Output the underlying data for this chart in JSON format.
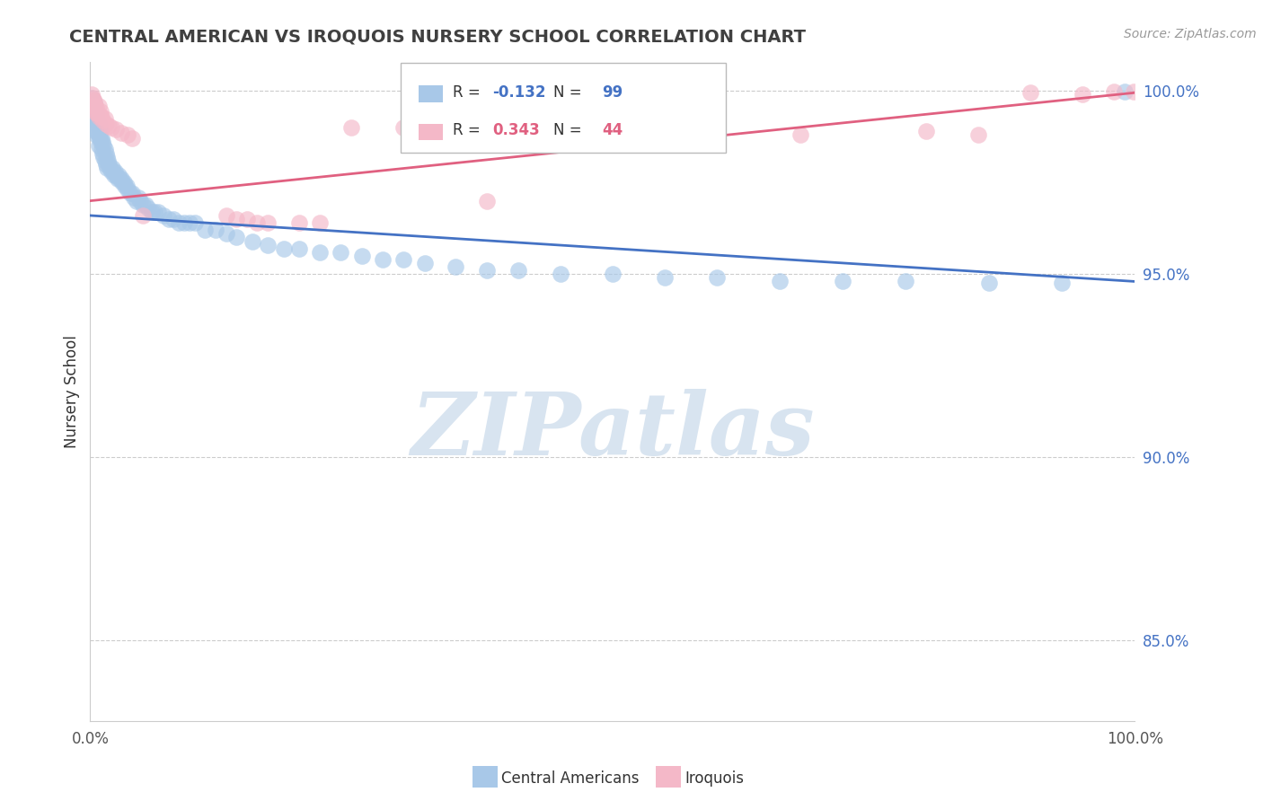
{
  "title": "CENTRAL AMERICAN VS IROQUOIS NURSERY SCHOOL CORRELATION CHART",
  "source_text": "Source: ZipAtlas.com",
  "ylabel": "Nursery School",
  "right_ytick_labels": [
    "85.0%",
    "90.0%",
    "95.0%",
    "100.0%"
  ],
  "right_ytick_values": [
    0.85,
    0.9,
    0.95,
    1.0
  ],
  "xmin": 0.0,
  "xmax": 1.0,
  "ymin": 0.828,
  "ymax": 1.008,
  "blue_R": -0.132,
  "blue_N": 99,
  "pink_R": 0.343,
  "pink_N": 44,
  "blue_color": "#a8c8e8",
  "pink_color": "#f4b8c8",
  "blue_line_color": "#4472c4",
  "pink_line_color": "#e06080",
  "grid_color": "#cccccc",
  "background_color": "#ffffff",
  "title_color": "#404040",
  "watermark_text": "ZIPatlas",
  "watermark_color": "#d8e4f0",
  "legend_label_blue": "Central Americans",
  "legend_label_pink": "Iroquois",
  "blue_line_y_start": 0.966,
  "blue_line_y_end": 0.948,
  "pink_line_y_start": 0.97,
  "pink_line_y_end": 0.9995,
  "blue_scatter_x": [
    0.001,
    0.002,
    0.002,
    0.003,
    0.003,
    0.003,
    0.004,
    0.004,
    0.005,
    0.005,
    0.005,
    0.006,
    0.006,
    0.006,
    0.007,
    0.007,
    0.008,
    0.008,
    0.008,
    0.009,
    0.009,
    0.01,
    0.01,
    0.011,
    0.011,
    0.012,
    0.012,
    0.013,
    0.013,
    0.014,
    0.014,
    0.015,
    0.015,
    0.016,
    0.016,
    0.017,
    0.018,
    0.019,
    0.02,
    0.021,
    0.022,
    0.023,
    0.024,
    0.025,
    0.026,
    0.027,
    0.028,
    0.03,
    0.031,
    0.032,
    0.033,
    0.035,
    0.036,
    0.038,
    0.04,
    0.042,
    0.044,
    0.046,
    0.048,
    0.05,
    0.053,
    0.056,
    0.059,
    0.062,
    0.065,
    0.07,
    0.075,
    0.08,
    0.085,
    0.09,
    0.095,
    0.1,
    0.11,
    0.12,
    0.13,
    0.14,
    0.155,
    0.17,
    0.185,
    0.2,
    0.22,
    0.24,
    0.26,
    0.28,
    0.3,
    0.32,
    0.35,
    0.38,
    0.41,
    0.45,
    0.5,
    0.55,
    0.6,
    0.66,
    0.72,
    0.78,
    0.86,
    0.93,
    0.99
  ],
  "blue_scatter_y": [
    0.998,
    0.996,
    0.994,
    0.997,
    0.995,
    0.992,
    0.9965,
    0.993,
    0.9945,
    0.992,
    0.989,
    0.9935,
    0.991,
    0.988,
    0.992,
    0.989,
    0.991,
    0.988,
    0.985,
    0.99,
    0.987,
    0.989,
    0.986,
    0.987,
    0.984,
    0.986,
    0.983,
    0.985,
    0.982,
    0.984,
    0.981,
    0.983,
    0.98,
    0.982,
    0.979,
    0.981,
    0.98,
    0.979,
    0.978,
    0.979,
    0.978,
    0.977,
    0.978,
    0.977,
    0.976,
    0.977,
    0.976,
    0.976,
    0.975,
    0.975,
    0.974,
    0.974,
    0.973,
    0.972,
    0.972,
    0.971,
    0.97,
    0.971,
    0.97,
    0.969,
    0.969,
    0.968,
    0.967,
    0.967,
    0.967,
    0.966,
    0.965,
    0.965,
    0.964,
    0.964,
    0.964,
    0.964,
    0.962,
    0.962,
    0.961,
    0.96,
    0.959,
    0.958,
    0.957,
    0.957,
    0.956,
    0.956,
    0.955,
    0.954,
    0.954,
    0.953,
    0.952,
    0.951,
    0.951,
    0.95,
    0.95,
    0.949,
    0.949,
    0.948,
    0.948,
    0.948,
    0.9475,
    0.9475,
    0.9999
  ],
  "pink_scatter_x": [
    0.001,
    0.002,
    0.002,
    0.003,
    0.004,
    0.004,
    0.005,
    0.006,
    0.006,
    0.007,
    0.008,
    0.008,
    0.009,
    0.01,
    0.011,
    0.012,
    0.014,
    0.015,
    0.018,
    0.02,
    0.025,
    0.03,
    0.036,
    0.04,
    0.05,
    0.13,
    0.14,
    0.15,
    0.16,
    0.17,
    0.2,
    0.22,
    0.25,
    0.3,
    0.38,
    0.45,
    0.55,
    0.68,
    0.8,
    0.85,
    0.9,
    0.95,
    0.98,
    0.999
  ],
  "pink_scatter_y": [
    0.999,
    0.998,
    0.996,
    0.9975,
    0.997,
    0.995,
    0.996,
    0.9955,
    0.994,
    0.994,
    0.996,
    0.993,
    0.9935,
    0.9945,
    0.993,
    0.992,
    0.9925,
    0.991,
    0.9905,
    0.99,
    0.9895,
    0.9885,
    0.988,
    0.987,
    0.966,
    0.966,
    0.965,
    0.965,
    0.964,
    0.964,
    0.964,
    0.964,
    0.99,
    0.99,
    0.97,
    0.99,
    0.989,
    0.988,
    0.989,
    0.988,
    0.9995,
    0.999,
    0.9998,
    0.9999
  ]
}
